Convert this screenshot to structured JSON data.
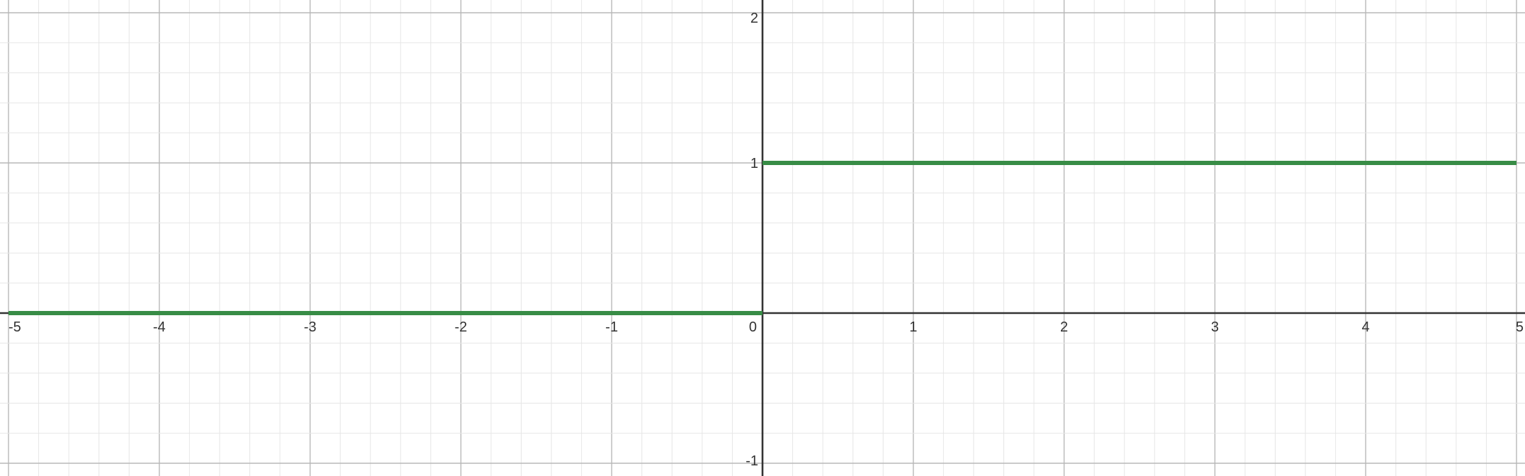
{
  "chart_data": {
    "type": "line",
    "title": "",
    "xlabel": "",
    "ylabel": "",
    "xlim": [
      -5,
      5
    ],
    "ylim": [
      -1,
      2
    ],
    "grid": true,
    "x_tick_labels": [
      "-5",
      "-4",
      "-3",
      "-2",
      "-1",
      "0",
      "1",
      "2",
      "3",
      "4",
      "5"
    ],
    "y_tick_labels": [
      "-1",
      "1",
      "2"
    ],
    "series": [
      {
        "color": "#388c46",
        "segments": [
          {
            "x": [
              -5,
              0
            ],
            "y": [
              0,
              0
            ]
          },
          {
            "x": [
              0,
              5
            ],
            "y": [
              1,
              1
            ]
          }
        ]
      }
    ]
  }
}
